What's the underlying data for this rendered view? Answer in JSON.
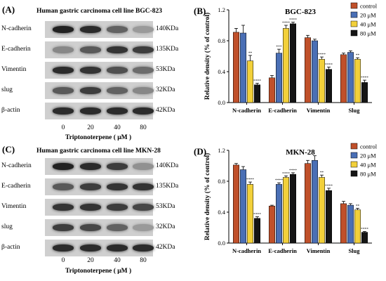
{
  "doses": [
    "0",
    "20",
    "40",
    "80"
  ],
  "blot_xlabel": "Triptonoterpene ( μM )",
  "panels": [
    {
      "letter": "(A)",
      "title": "Human gastric carcinoma cell line BGC-823",
      "rows": [
        {
          "label": "N-cadherin",
          "kda": "140KDa",
          "intensity": [
            0.9,
            0.85,
            0.55,
            0.25
          ]
        },
        {
          "label": "E-cadherin",
          "kda": "135KDa",
          "intensity": [
            0.35,
            0.6,
            0.8,
            0.75
          ]
        },
        {
          "label": "Vimentin",
          "kda": "53KDa",
          "intensity": [
            0.85,
            0.8,
            0.65,
            0.5
          ]
        },
        {
          "label": "slug",
          "kda": "32KDa",
          "intensity": [
            0.6,
            0.75,
            0.55,
            0.35
          ]
        },
        {
          "label": "β-actin",
          "kda": "42KDa",
          "intensity": [
            0.85,
            0.85,
            0.85,
            0.85
          ]
        }
      ]
    },
    {
      "letter": "(C)",
      "title": "Human gastric carcinoma cell line MKN-28",
      "rows": [
        {
          "label": "N-cadherin",
          "kda": "140KDa",
          "intensity": [
            0.9,
            0.85,
            0.75,
            0.3
          ]
        },
        {
          "label": "E-cadherin",
          "kda": "135KDa",
          "intensity": [
            0.6,
            0.75,
            0.8,
            0.8
          ]
        },
        {
          "label": "Vimentin",
          "kda": "53KDa",
          "intensity": [
            0.8,
            0.8,
            0.75,
            0.7
          ]
        },
        {
          "label": "slug",
          "kda": "32KDa",
          "intensity": [
            0.75,
            0.7,
            0.55,
            0.25
          ]
        },
        {
          "label": "β-actin",
          "kda": "42KDa",
          "intensity": [
            0.85,
            0.85,
            0.85,
            0.85
          ]
        }
      ]
    }
  ],
  "chart_data": [
    {
      "letter": "(B)",
      "type": "bar",
      "title": "BGC-823",
      "ylabel": "Relative density (% of control)",
      "ylim": [
        0,
        1.2
      ],
      "yticks": [
        "0.0",
        "0.4",
        "0.8",
        "1.2"
      ],
      "categories": [
        "N-cadherin",
        "E-cadherin",
        "Vimentin",
        "Slug"
      ],
      "legend_position": "top-right",
      "series": [
        {
          "name": "control",
          "color": "#c0502a",
          "values": [
            0.91,
            0.32,
            0.84,
            0.62
          ],
          "errors": [
            0.05,
            0.03,
            0.03,
            0.02
          ],
          "sig": [
            "",
            "",
            "",
            ""
          ]
        },
        {
          "name": "20 μM",
          "color": "#4a6fb5",
          "values": [
            0.9,
            0.64,
            0.8,
            0.65
          ],
          "errors": [
            0.1,
            0.05,
            0.02,
            0.02
          ],
          "sig": [
            "",
            "***",
            "",
            ""
          ]
        },
        {
          "name": "40 μM",
          "color": "#f2d03a",
          "values": [
            0.54,
            0.96,
            0.56,
            0.56
          ],
          "errors": [
            0.07,
            0.04,
            0.03,
            0.02
          ],
          "sig": [
            "**",
            "****",
            "****",
            "**"
          ]
        },
        {
          "name": "80 μM",
          "color": "#151515",
          "values": [
            0.23,
            1.02,
            0.43,
            0.26
          ],
          "errors": [
            0.02,
            0.02,
            0.03,
            0.03
          ],
          "sig": [
            "****",
            "****",
            "****",
            "****"
          ]
        }
      ]
    },
    {
      "letter": "(D)",
      "type": "bar",
      "title": "MKN-28",
      "ylabel": "Relative density (% of control)",
      "ylim": [
        0,
        1.2
      ],
      "yticks": [
        "0.0",
        "0.4",
        "0.8",
        "1.2"
      ],
      "categories": [
        "N-cadherin",
        "E-cadherin",
        "Vimentin",
        "Slug"
      ],
      "legend_position": "top-right",
      "series": [
        {
          "name": "control",
          "color": "#c0502a",
          "values": [
            1.01,
            0.48,
            1.03,
            0.51
          ],
          "errors": [
            0.02,
            0.01,
            0.04,
            0.03
          ],
          "sig": [
            "",
            "",
            "",
            ""
          ]
        },
        {
          "name": "20 μM",
          "color": "#4a6fb5",
          "values": [
            0.95,
            0.76,
            1.07,
            0.49
          ],
          "errors": [
            0.04,
            0.02,
            0.06,
            0.02
          ],
          "sig": [
            "",
            "****",
            "",
            ""
          ]
        },
        {
          "name": "40 μM",
          "color": "#f2d03a",
          "values": [
            0.76,
            0.85,
            0.85,
            0.43
          ],
          "errors": [
            0.03,
            0.02,
            0.03,
            0.02
          ],
          "sig": [
            "****",
            "****",
            "**",
            "**"
          ]
        },
        {
          "name": "80 μM",
          "color": "#151515",
          "values": [
            0.32,
            0.89,
            0.68,
            0.14
          ],
          "errors": [
            0.02,
            0.02,
            0.03,
            0.01
          ],
          "sig": [
            "****",
            "****",
            "****",
            "****"
          ]
        }
      ]
    }
  ]
}
